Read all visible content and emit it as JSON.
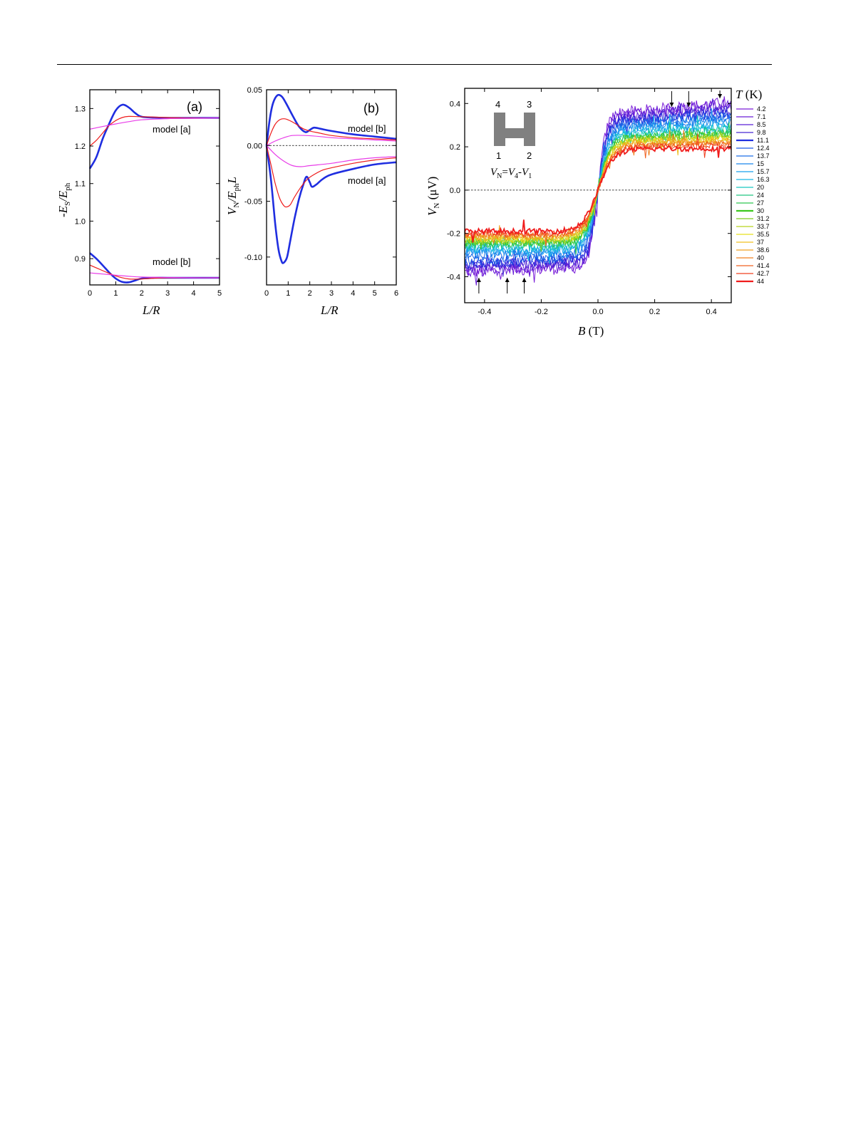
{
  "chart_data": [
    {
      "type": "line",
      "panel_label": "(a)",
      "xlabel": "L/R",
      "ylabel": "-E_S/E_ph",
      "xlim": [
        0,
        5
      ],
      "ylim": [
        0.83,
        1.35
      ],
      "xticks": [
        "0",
        "1",
        "2",
        "3",
        "4",
        "5"
      ],
      "yticks": [
        "0.9",
        "1.0",
        "1.1",
        "1.2",
        "1.3"
      ],
      "annotations": [
        "model [a]",
        "model [b]"
      ],
      "series": [
        {
          "group": "model [a]",
          "color": "#1f2ee0",
          "width": 2.6,
          "x": [
            0,
            0.25,
            0.5,
            0.75,
            1.0,
            1.25,
            1.5,
            1.75,
            2.0,
            2.5,
            3,
            4,
            5
          ],
          "y": [
            1.14,
            1.17,
            1.22,
            1.26,
            1.295,
            1.31,
            1.303,
            1.288,
            1.278,
            1.276,
            1.275,
            1.275,
            1.275
          ]
        },
        {
          "group": "model [a]",
          "color": "#ee1c1c",
          "width": 1.2,
          "x": [
            0,
            0.25,
            0.5,
            0.75,
            1.0,
            1.25,
            1.5,
            2.0,
            3,
            4,
            5
          ],
          "y": [
            1.2,
            1.215,
            1.235,
            1.255,
            1.268,
            1.276,
            1.279,
            1.278,
            1.276,
            1.275,
            1.275
          ]
        },
        {
          "group": "model [a]",
          "color": "#e83ce8",
          "width": 1.2,
          "x": [
            0,
            0.5,
            1.0,
            1.5,
            2.0,
            3,
            4,
            5
          ],
          "y": [
            1.245,
            1.252,
            1.259,
            1.265,
            1.27,
            1.273,
            1.274,
            1.275
          ]
        },
        {
          "group": "model [b]",
          "color": "#1f2ee0",
          "width": 2.6,
          "x": [
            0,
            0.25,
            0.5,
            0.75,
            1.0,
            1.25,
            1.5,
            1.75,
            2.0,
            2.5,
            3,
            4,
            5
          ],
          "y": [
            0.915,
            0.9,
            0.882,
            0.863,
            0.847,
            0.838,
            0.837,
            0.842,
            0.847,
            0.849,
            0.849,
            0.849,
            0.849
          ]
        },
        {
          "group": "model [b]",
          "color": "#ee1c1c",
          "width": 1.2,
          "x": [
            0,
            0.5,
            1.0,
            1.5,
            2.0,
            2.5,
            3,
            4,
            5
          ],
          "y": [
            0.883,
            0.868,
            0.854,
            0.846,
            0.846,
            0.848,
            0.849,
            0.849,
            0.849
          ]
        },
        {
          "group": "model [b]",
          "color": "#e83ce8",
          "width": 1.2,
          "x": [
            0,
            0.5,
            1.0,
            1.5,
            2.0,
            3,
            4,
            5
          ],
          "y": [
            0.862,
            0.859,
            0.856,
            0.853,
            0.851,
            0.85,
            0.849,
            0.849
          ]
        }
      ]
    },
    {
      "type": "line",
      "panel_label": "(b)",
      "xlabel": "L/R",
      "ylabel": "V_N/E_ph L",
      "xlim": [
        0,
        6
      ],
      "ylim": [
        -0.125,
        0.05
      ],
      "xticks": [
        "0",
        "1",
        "2",
        "3",
        "4",
        "5",
        "6"
      ],
      "yticks": [
        "-0.10",
        "-0.05",
        "0.00",
        "0.05"
      ],
      "annotations": [
        "model [b]",
        "model [a]"
      ],
      "series": [
        {
          "group": "model [b]",
          "color": "#1f2ee0",
          "width": 2.6,
          "x": [
            0,
            0.15,
            0.3,
            0.5,
            0.7,
            0.9,
            1.2,
            1.5,
            1.8,
            2.0,
            2.2,
            2.5,
            3,
            4,
            5,
            6
          ],
          "y": [
            0,
            0.024,
            0.038,
            0.045,
            0.044,
            0.038,
            0.027,
            0.017,
            0.012,
            0.014,
            0.016,
            0.015,
            0.013,
            0.01,
            0.008,
            0.006
          ]
        },
        {
          "group": "model [b]",
          "color": "#ee1c1c",
          "width": 1.2,
          "x": [
            0,
            0.2,
            0.4,
            0.6,
            0.8,
            1.0,
            1.3,
            1.7,
            2.0,
            2.5,
            3,
            4,
            5,
            6
          ],
          "y": [
            0,
            0.011,
            0.019,
            0.023,
            0.024,
            0.023,
            0.02,
            0.015,
            0.013,
            0.011,
            0.009,
            0.007,
            0.006,
            0.005
          ]
        },
        {
          "group": "model [b]",
          "color": "#e83ce8",
          "width": 1.2,
          "x": [
            0,
            0.4,
            0.8,
            1.2,
            1.8,
            2.5,
            3,
            4,
            5,
            6
          ],
          "y": [
            0,
            0.004,
            0.007,
            0.009,
            0.009,
            0.008,
            0.007,
            0.006,
            0.005,
            0.004
          ]
        },
        {
          "group": "model [a]",
          "color": "#1f2ee0",
          "width": 2.6,
          "x": [
            0,
            0.2,
            0.4,
            0.55,
            0.7,
            0.8,
            0.95,
            1.1,
            1.3,
            1.5,
            1.7,
            1.85,
            2.0,
            2.1,
            2.3,
            2.6,
            3,
            4,
            5,
            6
          ],
          "y": [
            0,
            -0.03,
            -0.07,
            -0.093,
            -0.104,
            -0.105,
            -0.1,
            -0.085,
            -0.065,
            -0.048,
            -0.035,
            -0.028,
            -0.033,
            -0.037,
            -0.035,
            -0.03,
            -0.026,
            -0.021,
            -0.017,
            -0.015
          ]
        },
        {
          "group": "model [a]",
          "color": "#ee1c1c",
          "width": 1.2,
          "x": [
            0,
            0.2,
            0.4,
            0.6,
            0.8,
            0.95,
            1.1,
            1.3,
            1.6,
            1.9,
            2.2,
            2.6,
            3,
            4,
            5,
            6
          ],
          "y": [
            0,
            -0.017,
            -0.034,
            -0.047,
            -0.054,
            -0.055,
            -0.053,
            -0.046,
            -0.037,
            -0.03,
            -0.026,
            -0.022,
            -0.02,
            -0.016,
            -0.013,
            -0.011
          ]
        },
        {
          "group": "model [a]",
          "color": "#e83ce8",
          "width": 1.2,
          "x": [
            0,
            0.4,
            0.8,
            1.2,
            1.6,
            2.0,
            3,
            4,
            5,
            6
          ],
          "y": [
            0,
            -0.008,
            -0.014,
            -0.018,
            -0.019,
            -0.018,
            -0.016,
            -0.013,
            -0.011,
            -0.01
          ]
        }
      ]
    },
    {
      "type": "line",
      "xlabel": "B (T)",
      "ylabel": "V_N (μV)",
      "xlim": [
        -0.47,
        0.47
      ],
      "ylim": [
        -0.52,
        0.47
      ],
      "xticks": [
        "-0.4",
        "-0.2",
        "0.0",
        "0.2",
        "0.4"
      ],
      "yticks": [
        "-0.4",
        "-0.2",
        "0.0",
        "0.2",
        "0.4"
      ],
      "legend_title": "T (K)",
      "legend_position": "right",
      "inset": {
        "terminals": [
          "4",
          "3",
          "1",
          "2"
        ],
        "formula": "V_N=V_4-V_1"
      },
      "arrows_up_at_B": [
        -0.42,
        -0.32,
        -0.26
      ],
      "arrows_down_at_B": [
        0.26,
        0.32,
        0.43
      ],
      "series": [
        {
          "name": "4.2",
          "color": "#7a1cd8",
          "plateau": 0.36
        },
        {
          "name": "7.1",
          "color": "#6a1ed8",
          "plateau": 0.355
        },
        {
          "name": "8.5",
          "color": "#5a22d6",
          "plateau": 0.34
        },
        {
          "name": "9.8",
          "color": "#4828d4",
          "plateau": 0.33
        },
        {
          "name": "11.1",
          "color": "#1f2ee0",
          "plateau": 0.32
        },
        {
          "name": "12.4",
          "color": "#1e5ae6",
          "plateau": 0.31
        },
        {
          "name": "13.7",
          "color": "#1c6ee8",
          "plateau": 0.3
        },
        {
          "name": "15",
          "color": "#1a88ec",
          "plateau": 0.29
        },
        {
          "name": "15.7",
          "color": "#18a0ee",
          "plateau": 0.28
        },
        {
          "name": "16.3",
          "color": "#18b8e6",
          "plateau": 0.27
        },
        {
          "name": "20",
          "color": "#18c8c0",
          "plateau": 0.26
        },
        {
          "name": "24",
          "color": "#20c880",
          "plateau": 0.25
        },
        {
          "name": "27",
          "color": "#2ec850",
          "plateau": 0.245
        },
        {
          "name": "30",
          "color": "#3cc81e",
          "plateau": 0.24
        },
        {
          "name": "31.2",
          "color": "#7ccc1e",
          "plateau": 0.235
        },
        {
          "name": "33.7",
          "color": "#b8d41e",
          "plateau": 0.23
        },
        {
          "name": "35.5",
          "color": "#e8e01e",
          "plateau": 0.225
        },
        {
          "name": "37",
          "color": "#f0c020",
          "plateau": 0.22
        },
        {
          "name": "38.6",
          "color": "#f0a020",
          "plateau": 0.215
        },
        {
          "name": "40",
          "color": "#f08020",
          "plateau": 0.21
        },
        {
          "name": "41.4",
          "color": "#f06020",
          "plateau": 0.205
        },
        {
          "name": "42.7",
          "color": "#f04020",
          "plateau": 0.2
        },
        {
          "name": "44",
          "color": "#f01c1c",
          "plateau": 0.19
        }
      ]
    }
  ]
}
